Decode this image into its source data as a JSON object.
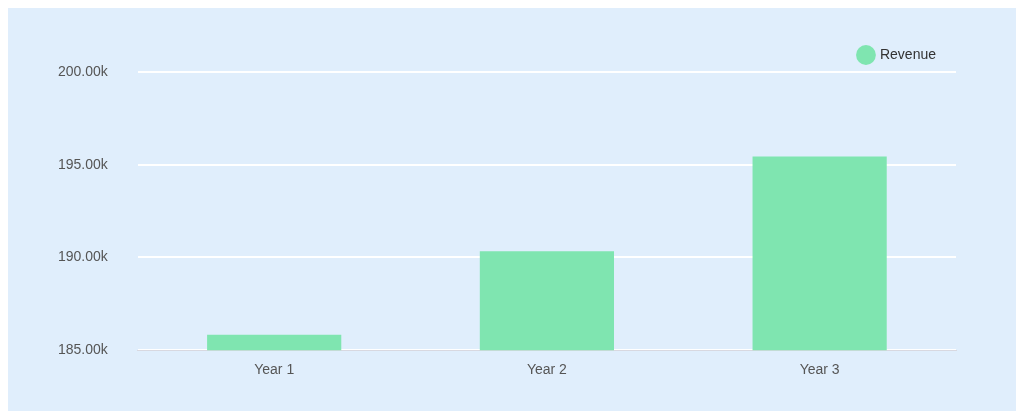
{
  "chart_data": {
    "type": "bar",
    "categories": [
      "Year 1",
      "Year 2",
      "Year 3"
    ],
    "series": [
      {
        "name": "Revenue",
        "color": "#7fe5b0",
        "values": [
          185830,
          190330,
          195440
        ]
      }
    ],
    "ylim": [
      185000,
      200000
    ],
    "yticks": [
      {
        "value": 185000,
        "label": "185.00k"
      },
      {
        "value": 190000,
        "label": "190.00k"
      },
      {
        "value": 195000,
        "label": "195.00k"
      },
      {
        "value": 200000,
        "label": "200.00k"
      }
    ],
    "grid": "y",
    "legend": "top right"
  }
}
